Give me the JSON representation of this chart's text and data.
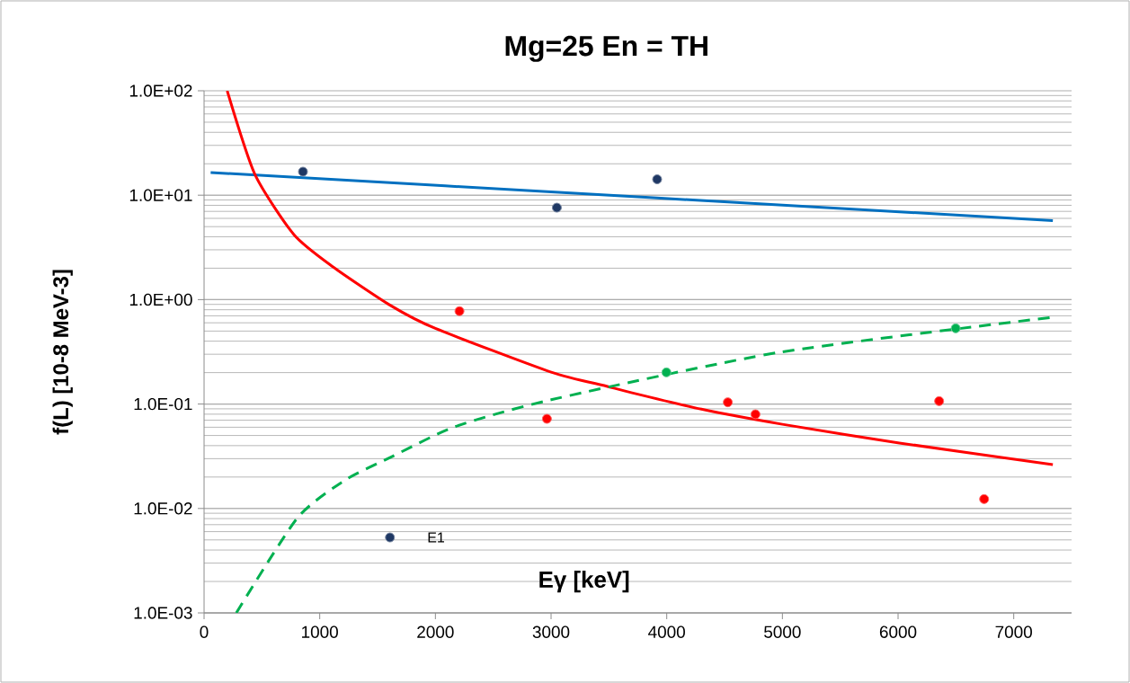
{
  "chart_data": {
    "type": "scatter",
    "title": "Mg=25 En = TH",
    "xlabel": "Eγ [keV]",
    "ylabel": "f(L) [10-8 MeV-3]",
    "xlim": [
      0,
      7500
    ],
    "xticks": [
      0,
      1000,
      2000,
      3000,
      4000,
      5000,
      6000,
      7000
    ],
    "ylim": [
      0.001,
      100
    ],
    "yticks": [
      {
        "value": 0.001,
        "label": "1.0E-03"
      },
      {
        "value": 0.01,
        "label": "1.0E-02"
      },
      {
        "value": 0.1,
        "label": "1.0E-01"
      },
      {
        "value": 1,
        "label": "1.0E+00"
      },
      {
        "value": 10,
        "label": "1.0E+01"
      },
      {
        "value": 100,
        "label": "1.0E+02"
      }
    ],
    "log": "y",
    "grid": "y",
    "marker": "circle",
    "series": [
      {
        "type": "line",
        "color": "#0070c0",
        "marker": "none",
        "line_style": "solid",
        "x": [
          57,
          3917,
          7338
        ],
        "values": [
          16.5,
          9.4,
          5.71
        ]
      },
      {
        "type": "line",
        "color": "#ff0000",
        "marker": "none",
        "line_style": "solid",
        "x": [
          200,
          440,
          778,
          1112,
          1612,
          2000,
          3001,
          3473,
          3678,
          4300,
          5000,
          6011,
          7338
        ],
        "values": [
          100,
          15.8,
          4.18,
          2.07,
          0.88,
          0.53,
          0.202,
          0.149,
          0.13,
          0.0893,
          0.064,
          0.0424,
          0.0263
        ]
      },
      {
        "type": "line",
        "color": "#00b050",
        "marker": "none",
        "line_style": "dashed",
        "x": [
          279,
          806,
          1223,
          1612,
          2167,
          3001,
          4974,
          7338
        ],
        "values": [
          0.001,
          0.0081,
          0.0188,
          0.0309,
          0.0605,
          0.11,
          0.313,
          0.678
        ]
      },
      {
        "color": "#1f3864",
        "x": [
          855,
          3050,
          3917,
          1607
        ],
        "values": [
          16.8,
          7.6,
          14.2,
          0.00528
        ]
      },
      {
        "color": "#ff0000",
        "x": [
          2208,
          2964,
          4528,
          4767,
          6355,
          6744
        ],
        "values": [
          0.776,
          0.0722,
          0.104,
          0.0798,
          0.1067,
          0.0123
        ]
      },
      {
        "color": "#00b050",
        "x": [
          3997,
          6498
        ],
        "values": [
          0.201,
          0.531
        ]
      }
    ],
    "annotations": [
      {
        "text": "E1",
        "x": 1607,
        "y": 0.00528
      }
    ]
  }
}
